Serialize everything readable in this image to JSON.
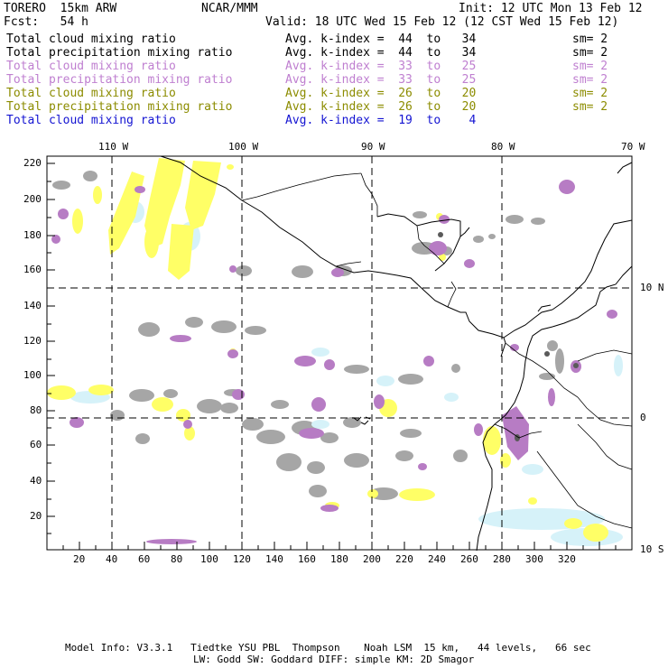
{
  "header": {
    "model": "TORERO  15km ARW",
    "org": "NCAR/MMM",
    "init": "Init: 12 UTC Mon 13 Feb 12",
    "fcst": "Fcst:   54 h",
    "valid": "Valid: 18 UTC Wed 15 Feb 12 (12 CST Wed 15 Feb 12)"
  },
  "legend": [
    {
      "label": "Total cloud mixing ratio",
      "kindex": "Avg. k-index =  44  to   34",
      "sm": "sm= 2",
      "color": "#000000"
    },
    {
      "label": "Total precipitation mixing ratio",
      "kindex": "Avg. k-index =  44  to   34",
      "sm": "sm= 2",
      "color": "#000000"
    },
    {
      "label": "Total cloud mixing ratio",
      "kindex": "Avg. k-index =  33  to   25",
      "sm": "sm= 2",
      "color": "#bf7fd0"
    },
    {
      "label": "Total precipitation mixing ratio",
      "kindex": "Avg. k-index =  33  to   25",
      "sm": "sm= 2",
      "color": "#bf7fd0"
    },
    {
      "label": "Total cloud mixing ratio",
      "kindex": "Avg. k-index =  26  to   20",
      "sm": "sm= 2",
      "color": "#8c8c00"
    },
    {
      "label": "Total precipitation mixing ratio",
      "kindex": "Avg. k-index =  26  to   20",
      "sm": "sm= 2",
      "color": "#8c8c00"
    },
    {
      "label": "Total cloud mixing ratio",
      "kindex": "Avg. k-index =  19  to    4",
      "sm": "",
      "color": "#1414d2"
    }
  ],
  "map": {
    "lon_labels": [
      "110 W",
      "100 W",
      "90 W",
      "80 W",
      "70 W"
    ],
    "lat_labels": [
      "10 N",
      "0",
      "10 S"
    ],
    "x_ticks": [
      "20",
      "40",
      "60",
      "80",
      "100",
      "120",
      "140",
      "160",
      "180",
      "200",
      "220",
      "240",
      "260",
      "280",
      "300",
      "320"
    ],
    "y_ticks": [
      "220",
      "200",
      "180",
      "160",
      "140",
      "120",
      "100",
      "80",
      "60",
      "40",
      "20"
    ],
    "colors": {
      "gray": "#a6a6a6",
      "purple": "#b77cc4",
      "yellow": "#ffff66",
      "lightblue": "#d6f2f9",
      "darkgray": "#5a5a5a"
    }
  },
  "footer": {
    "line1": "Model Info: V3.3.1   Tiedtke YSU PBL  Thompson    Noah LSM  15 km,   44 levels,   66 sec",
    "line2": "LW: Godd SW: Goddard DIFF: simple KM: 2D Smagor"
  }
}
